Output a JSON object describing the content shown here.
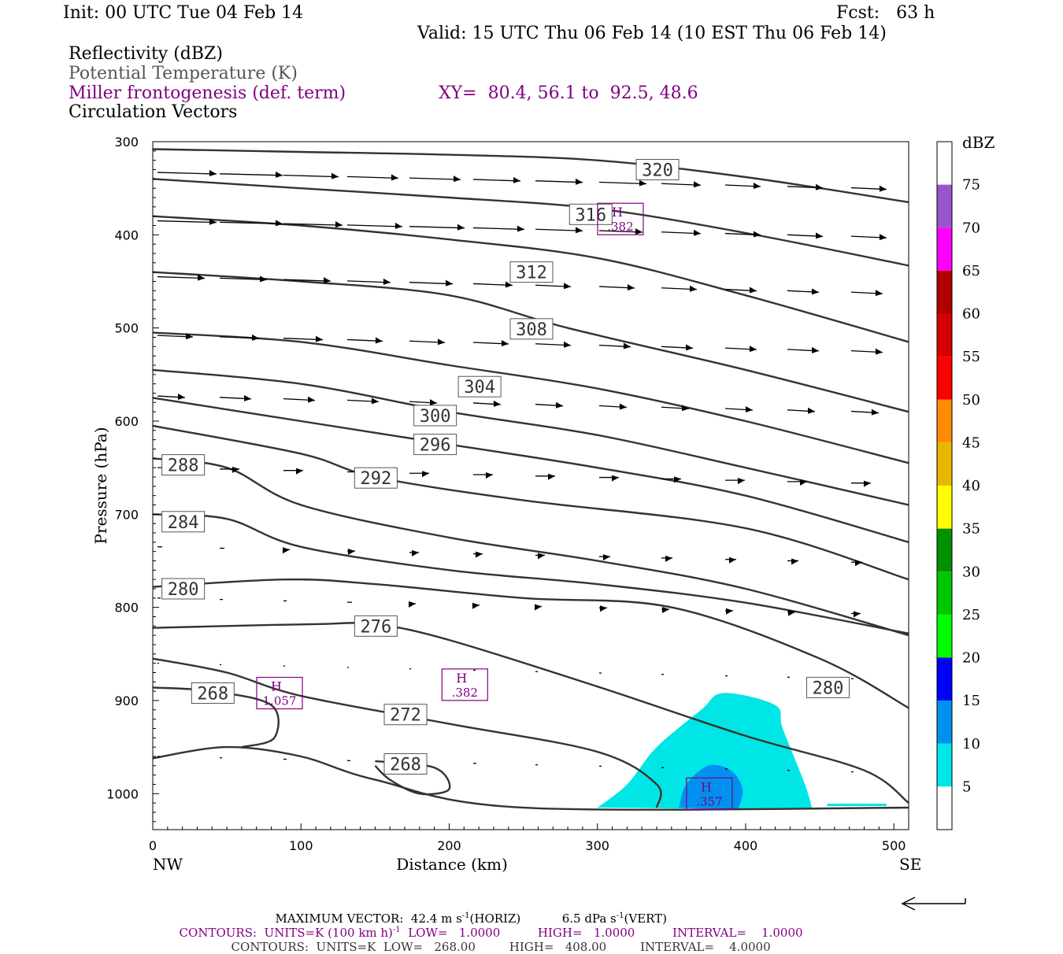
{
  "header": {
    "init": "Init: 00 UTC Tue 04 Feb 14",
    "fcst": "Fcst:   63 h",
    "valid": "Valid: 15 UTC Thu 06 Feb 14 (10 EST Thu 06 Feb 14)",
    "fields": [
      "Reflectivity (dBZ)",
      "Potential Temperature (K)",
      "Miller frontogenesis (def. term)",
      "Circulation Vectors"
    ],
    "xy": "XY=  80.4, 56.1 to  92.5, 48.6"
  },
  "chart_data": {
    "type": "cross-section",
    "xlabel": "Distance (km)",
    "ylabel": "Pressure (hPa)",
    "xlim": [
      0,
      510
    ],
    "ylim": [
      1040,
      300
    ],
    "x_ticks": [
      0,
      100,
      200,
      300,
      400,
      500
    ],
    "y_ticks": [
      300,
      400,
      500,
      600,
      700,
      800,
      900,
      1000
    ],
    "x_end_labels": {
      "left": "NW",
      "right": "SE"
    },
    "colorbar": {
      "unit": "dBZ",
      "ticks": [
        5,
        10,
        15,
        20,
        25,
        30,
        35,
        40,
        45,
        50,
        55,
        60,
        65,
        70,
        75
      ],
      "colors": [
        "#ffffff",
        "#00e5e5",
        "#0090f0",
        "#0000ff",
        "#00ff00",
        "#00c800",
        "#009000",
        "#ffff00",
        "#e6b800",
        "#ff8c00",
        "#ff0000",
        "#d60000",
        "#b00000",
        "#ff00ff",
        "#9955cc",
        "#ffffff"
      ]
    },
    "theta_contours": [
      {
        "label": "320",
        "points": [
          [
            0,
            308
          ],
          [
            100,
            311
          ],
          [
            200,
            314
          ],
          [
            300,
            320
          ],
          [
            400,
            338
          ],
          [
            510,
            365
          ]
        ]
      },
      {
        "label": "316",
        "points": [
          [
            0,
            340
          ],
          [
            100,
            350
          ],
          [
            200,
            360
          ],
          [
            300,
            372
          ],
          [
            400,
            398
          ],
          [
            510,
            433
          ]
        ]
      },
      {
        "label": "312",
        "points": [
          [
            0,
            380
          ],
          [
            100,
            390
          ],
          [
            200,
            405
          ],
          [
            300,
            425
          ],
          [
            400,
            465
          ],
          [
            510,
            515
          ]
        ]
      },
      {
        "label": "308",
        "points": [
          [
            0,
            440
          ],
          [
            100,
            450
          ],
          [
            200,
            465
          ],
          [
            280,
            500
          ],
          [
            400,
            545
          ],
          [
            510,
            590
          ]
        ]
      },
      {
        "label": "304",
        "points": [
          [
            0,
            505
          ],
          [
            100,
            515
          ],
          [
            200,
            540
          ],
          [
            300,
            565
          ],
          [
            400,
            600
          ],
          [
            510,
            645
          ]
        ]
      },
      {
        "label": "300",
        "points": [
          [
            0,
            545
          ],
          [
            100,
            560
          ],
          [
            200,
            590
          ],
          [
            300,
            615
          ],
          [
            400,
            650
          ],
          [
            510,
            690
          ]
        ]
      },
      {
        "label": "296",
        "points": [
          [
            0,
            575
          ],
          [
            100,
            600
          ],
          [
            200,
            625
          ],
          [
            300,
            650
          ],
          [
            400,
            680
          ],
          [
            510,
            730
          ]
        ]
      },
      {
        "label": "292",
        "points": [
          [
            0,
            605
          ],
          [
            100,
            635
          ],
          [
            150,
            660
          ],
          [
            250,
            685
          ],
          [
            400,
            715
          ],
          [
            510,
            770
          ]
        ]
      },
      {
        "label": "288",
        "points": [
          [
            0,
            640
          ],
          [
            50,
            650
          ],
          [
            100,
            690
          ],
          [
            200,
            725
          ],
          [
            300,
            750
          ],
          [
            400,
            780
          ],
          [
            510,
            830
          ]
        ]
      },
      {
        "label": "284",
        "points": [
          [
            0,
            700
          ],
          [
            50,
            705
          ],
          [
            100,
            735
          ],
          [
            200,
            760
          ],
          [
            300,
            775
          ],
          [
            400,
            795
          ],
          [
            510,
            828
          ]
        ]
      },
      {
        "label": "280",
        "points": [
          [
            0,
            778
          ],
          [
            90,
            770
          ],
          [
            150,
            775
          ],
          [
            250,
            790
          ],
          [
            350,
            800
          ],
          [
            450,
            855
          ],
          [
            510,
            908
          ]
        ]
      },
      {
        "label": "276",
        "points": [
          [
            0,
            822
          ],
          [
            50,
            820
          ],
          [
            110,
            818
          ],
          [
            150,
            818
          ],
          [
            200,
            835
          ],
          [
            300,
            885
          ],
          [
            400,
            938
          ],
          [
            480,
            975
          ],
          [
            510,
            1010
          ]
        ]
      },
      {
        "label": "272",
        "points": [
          [
            0,
            855
          ],
          [
            50,
            870
          ],
          [
            100,
            895
          ],
          [
            200,
            925
          ],
          [
            300,
            955
          ],
          [
            340,
            990
          ],
          [
            340,
            1015
          ]
        ]
      },
      {
        "label": "268",
        "points": [
          [
            0,
            886
          ],
          [
            40,
            890
          ],
          [
            80,
            905
          ],
          [
            82,
            940
          ],
          [
            60,
            950
          ]
        ]
      },
      {
        "label": "268",
        "points": [
          [
            150,
            965
          ],
          [
            190,
            972
          ],
          [
            200,
            995
          ],
          [
            180,
            1000
          ],
          [
            160,
            985
          ],
          [
            150,
            970
          ]
        ]
      },
      {
        "label": "276",
        "points": [
          [
            0,
            962
          ],
          [
            50,
            950
          ],
          [
            100,
            960
          ],
          [
            150,
            985
          ],
          [
            250,
            1015
          ],
          [
            510,
            1015
          ]
        ]
      }
    ],
    "frontogenesis_maxima": [
      {
        "label": "H",
        "value": ".382",
        "x": 315,
        "p": 383
      },
      {
        "label": "H",
        "value": "1.057",
        "x": 85,
        "p": 892
      },
      {
        "label": "H",
        "value": ".382",
        "x": 210,
        "p": 883
      },
      {
        "label": "H",
        "value": ".357",
        "x": 375,
        "p": 1000
      }
    ],
    "reflectivity_regions": [
      {
        "dbz_min": 5,
        "points": [
          [
            300,
            1015
          ],
          [
            320,
            990
          ],
          [
            340,
            950
          ],
          [
            370,
            910
          ],
          [
            385,
            892
          ],
          [
            420,
            905
          ],
          [
            425,
            930
          ],
          [
            440,
            990
          ],
          [
            445,
            1017
          ]
        ]
      },
      {
        "dbz_min": 10,
        "points": [
          [
            355,
            1015
          ],
          [
            360,
            990
          ],
          [
            375,
            970
          ],
          [
            390,
            975
          ],
          [
            398,
            995
          ],
          [
            395,
            1017
          ]
        ]
      }
    ]
  },
  "footer": {
    "max_vector": "MAXIMUM VECTOR:  42.4 m s",
    "max_vector_tail": "(HORIZ)           6.5 dPa s",
    "vert_tail": "(VERT)",
    "contours_purple": "CONTOURS:  UNITS=K (100 km h)",
    "contours_purple_tail": "  LOW=   1.0000          HIGH=   1.0000          INTERVAL=    1.0000",
    "contours_black": "CONTOURS:  UNITS=K  LOW=   268.00         HIGH=   408.00         INTERVAL=    4.0000"
  }
}
